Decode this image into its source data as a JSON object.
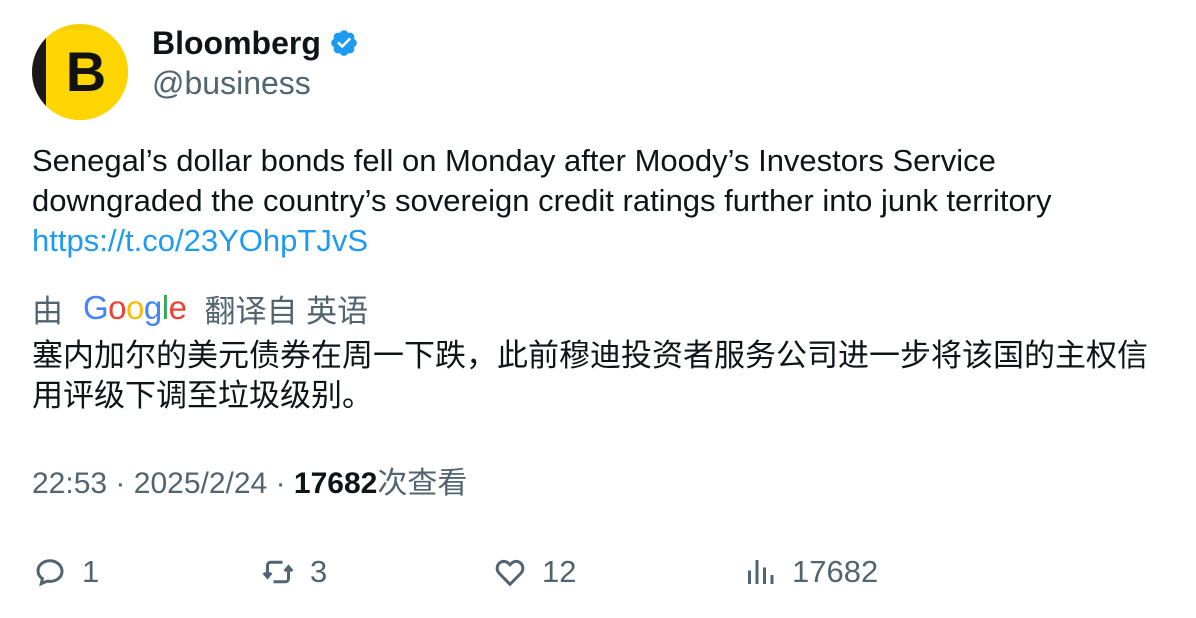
{
  "author": {
    "avatar_letter": "B",
    "display_name": "Bloomberg",
    "handle": "@business",
    "verified_icon": "verified-badge-icon",
    "verified_color": "#1d9bf0"
  },
  "tweet": {
    "text": "Senegal’s dollar bonds fell on Monday after Moody’s Investors Service downgraded the country’s sovereign credit ratings further into junk territory",
    "link": "https://t.co/23YOhpTJvS",
    "link_color": "#1d9bf0"
  },
  "translation": {
    "prefix": "由",
    "provider_letters": [
      "G",
      "o",
      "o",
      "g",
      "l",
      "e"
    ],
    "suffix": "翻译自 英语",
    "text": "塞内加尔的美元债券在周一下跌，此前穆迪投资者服务公司进一步将该国的主权信用评级下调至垃圾级别。"
  },
  "meta": {
    "time": "22:53",
    "separator": "·",
    "date": "2025/2/24",
    "views_count": "17682",
    "views_label": "次查看"
  },
  "actions": {
    "reply": {
      "icon": "reply-icon",
      "count": "1"
    },
    "retweet": {
      "icon": "retweet-icon",
      "count": "3"
    },
    "like": {
      "icon": "heart-icon",
      "count": "12"
    },
    "views": {
      "icon": "analytics-icon",
      "count": "17682"
    }
  },
  "colors": {
    "text_primary": "#0f1419",
    "text_secondary": "#536471",
    "avatar_yellow": "#ffd500"
  }
}
